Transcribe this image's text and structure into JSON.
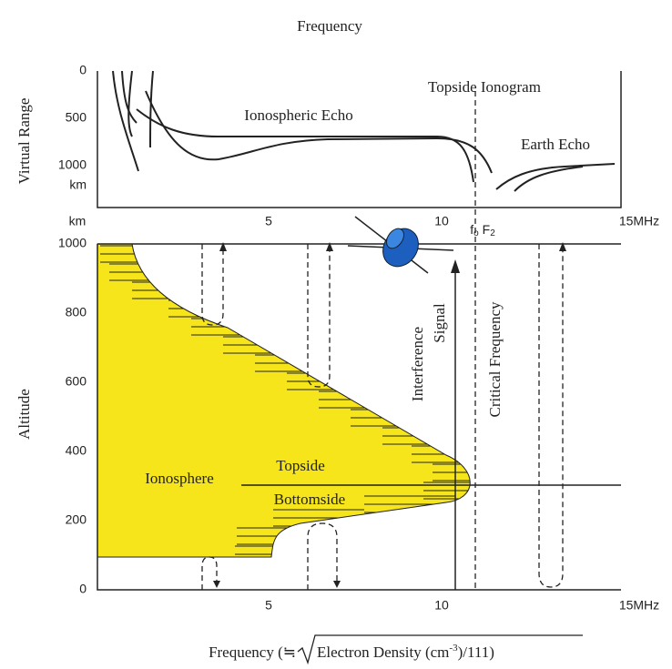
{
  "header": {
    "title": "Frequency"
  },
  "top_panel": {
    "y_axis_title": "Virtual Range",
    "y_ticks": [
      "0",
      "500",
      "1000"
    ],
    "y_unit": "km",
    "x_unit": "km",
    "x_ticks": [
      "5",
      "10",
      "15MHz"
    ],
    "labels": {
      "topside_ionogram": "Topside Ionogram",
      "ionospheric_echo": "Ionospheric Echo",
      "earth_echo": "Earth Echo"
    },
    "critical_label": [
      "f",
      "o",
      "F",
      "2"
    ]
  },
  "bottom_panel": {
    "y_axis_title": "Altitude",
    "y_ticks": [
      "1000",
      "800",
      "600",
      "400",
      "200",
      "0"
    ],
    "x_ticks": [
      "5",
      "10",
      "15MHz"
    ],
    "labels": {
      "ionosphere": "Ionosphere",
      "topside": "Topside",
      "bottomside": "Bottomside",
      "interference_1": "Interference",
      "interference_2": "Signal",
      "critical_frequency": "Critical Frequency"
    },
    "x_axis_title": [
      "Frequency (≒",
      "Electron Density (cm",
      "-3",
      ")/111)"
    ]
  }
}
